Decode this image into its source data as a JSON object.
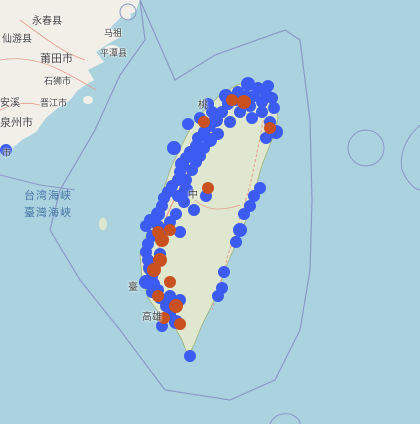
{
  "map": {
    "colors": {
      "sea": "#aad3df",
      "land": "#f2efe9",
      "taiwan_land": "#dfe8cf",
      "boundary": "#8a99c7",
      "road": "#e89a8d",
      "marker_blue": "#3b5bf2",
      "marker_orange": "#c8511f"
    },
    "labels": [
      {
        "id": "yongchun",
        "text": "永春县"
      },
      {
        "id": "xianyou",
        "text": "仙游县"
      },
      {
        "id": "mazu",
        "text": "马祖"
      },
      {
        "id": "putian",
        "text": "莆田市"
      },
      {
        "id": "pingtan",
        "text": "平潭县"
      },
      {
        "id": "shishi",
        "text": "石狮市"
      },
      {
        "id": "anxi",
        "text": "安溪"
      },
      {
        "id": "quanzhou",
        "text": "泉州市"
      },
      {
        "id": "jinjiang",
        "text": "晋江市"
      },
      {
        "id": "xiamen",
        "text": "市"
      },
      {
        "id": "taipei",
        "text": "桃"
      },
      {
        "id": "taichung",
        "text": "中"
      },
      {
        "id": "tainan",
        "text": "臺"
      },
      {
        "id": "kaohsiung",
        "text": "高雄"
      }
    ],
    "sea_labels": [
      {
        "id": "strait1",
        "text": "台湾海峡"
      },
      {
        "id": "strait2",
        "text": "臺灣海峽"
      }
    ]
  }
}
